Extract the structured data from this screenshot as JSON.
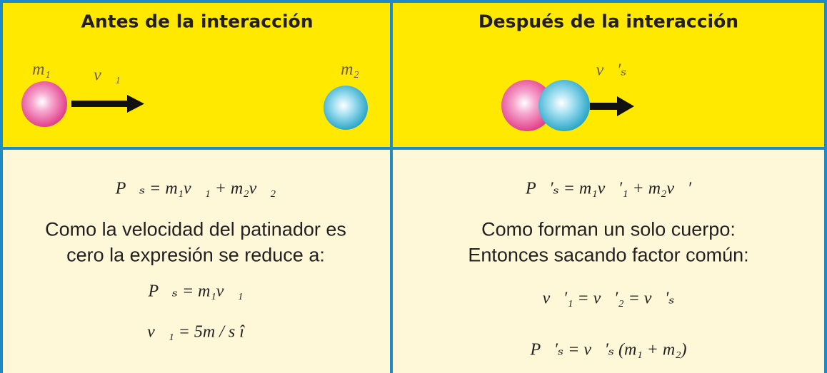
{
  "columns": [
    {
      "header": "Antes de la interacción",
      "figure_labels": [
        "m₁",
        "v⃗₁",
        "m₂"
      ],
      "body": [
        "P⃗ₛ = m₁v⃗₁ + m₂v⃗₂",
        "Como la velocidad del patinador es",
        "cero la expresión se reduce a:",
        "P⃗ₛ = m₁v⃗₁",
        "v⃗₁ = 5m / s î"
      ]
    },
    {
      "header": "Después de la interacción",
      "figure_labels": [
        "v⃗′ₛ"
      ],
      "body": [
        "P⃗′ₛ = m₁v⃗′₁ + m₂v⃗′",
        "Como forman un solo cuerpo:",
        "Entonces sacando factor común:",
        "v⃗′₁ = v⃗′₂ = v⃗′ₛ",
        "P⃗′ₛ = v⃗′ₛ (m₁ + m₂)"
      ]
    }
  ]
}
